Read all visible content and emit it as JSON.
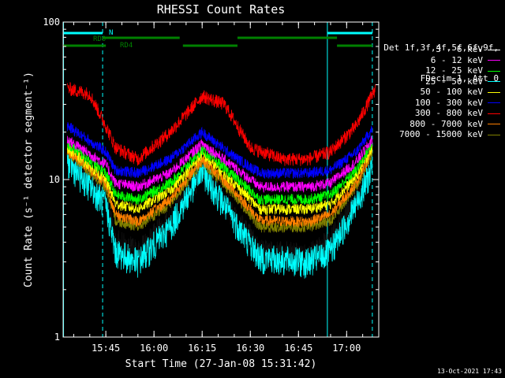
{
  "chart_data": {
    "type": "line",
    "title": "RHESSI Count Rates",
    "xlabel": "Start Time (27-Jan-08 15:31:42)",
    "ylabel": "Count Rate (s⁻¹ detector segment⁻¹)",
    "ylog": true,
    "ylim": [
      1,
      100
    ],
    "xlim_minutes": [
      "15:31:42",
      "17:10:00"
    ],
    "y_ticks": [
      "1",
      "10",
      "100"
    ],
    "x_ticks": [
      "15:45",
      "16:00",
      "16:15",
      "16:30",
      "16:45",
      "17:00"
    ],
    "legend_header": [
      "Det 1f,3f,4f,5f,6f,9f,",
      "FDecim 1, Att 0"
    ],
    "series": [
      {
        "name": "3 - 6 keV",
        "color": "#000000"
      },
      {
        "name": "6 - 12 keV",
        "color": "#ff00ff"
      },
      {
        "name": "12 - 25 keV",
        "color": "#00ff00"
      },
      {
        "name": "25 - 50 keV",
        "color": "#00ffff"
      },
      {
        "name": "50 - 100 keV",
        "color": "#ffff00"
      },
      {
        "name": "100 - 300 keV",
        "color": "#0000ff"
      },
      {
        "name": "300 - 800 keV",
        "color": "#ff0000"
      },
      {
        "name": "800 - 7000 keV",
        "color": "#ff8000"
      },
      {
        "name": "7000 - 15000 keV",
        "color": "#808000"
      }
    ],
    "profiles": [
      {
        "color": "#000000",
        "points": [
          [
            "15:33",
            14
          ],
          [
            "15:45",
            8
          ],
          [
            "15:48",
            4
          ],
          [
            "15:55",
            3.4
          ],
          [
            "16:05",
            5.5
          ],
          [
            "16:15",
            12
          ],
          [
            "16:25",
            6
          ],
          [
            "16:33",
            3.5
          ],
          [
            "16:48",
            3.2
          ],
          [
            "16:55",
            4
          ],
          [
            "17:03",
            8
          ],
          [
            "17:08",
            14
          ]
        ]
      },
      {
        "color": "#00ffff",
        "points": [
          [
            "15:33",
            13
          ],
          [
            "15:45",
            7
          ],
          [
            "15:48",
            3.5
          ],
          [
            "15:55",
            3
          ],
          [
            "16:05",
            5
          ],
          [
            "16:15",
            11.5
          ],
          [
            "16:25",
            5.5
          ],
          [
            "16:33",
            3.2
          ],
          [
            "16:48",
            3.0
          ],
          [
            "16:55",
            3.5
          ],
          [
            "17:03",
            7
          ],
          [
            "17:08",
            12
          ]
        ]
      },
      {
        "color": "#808000",
        "points": [
          [
            "15:33",
            15
          ],
          [
            "15:45",
            9
          ],
          [
            "15:48",
            5.5
          ],
          [
            "15:55",
            5
          ],
          [
            "16:05",
            7
          ],
          [
            "16:15",
            13
          ],
          [
            "16:25",
            8
          ],
          [
            "16:33",
            5
          ],
          [
            "16:48",
            5
          ],
          [
            "16:55",
            5.5
          ],
          [
            "17:03",
            9
          ],
          [
            "17:08",
            15
          ]
        ]
      },
      {
        "color": "#ff8000",
        "points": [
          [
            "15:33",
            15.5
          ],
          [
            "15:45",
            9.5
          ],
          [
            "15:48",
            6
          ],
          [
            "15:55",
            5.4
          ],
          [
            "16:05",
            7.5
          ],
          [
            "16:15",
            13.5
          ],
          [
            "16:25",
            8.5
          ],
          [
            "16:33",
            5.5
          ],
          [
            "16:48",
            5.4
          ],
          [
            "16:55",
            6
          ],
          [
            "17:03",
            9.5
          ],
          [
            "17:08",
            15.5
          ]
        ]
      },
      {
        "color": "#ffff00",
        "points": [
          [
            "15:33",
            16
          ],
          [
            "15:45",
            10
          ],
          [
            "15:48",
            7
          ],
          [
            "15:55",
            6.5
          ],
          [
            "16:05",
            8.5
          ],
          [
            "16:15",
            14.5
          ],
          [
            "16:25",
            9.5
          ],
          [
            "16:33",
            6.5
          ],
          [
            "16:48",
            6.5
          ],
          [
            "16:55",
            7
          ],
          [
            "17:03",
            10.5
          ],
          [
            "17:08",
            16
          ]
        ]
      },
      {
        "color": "#00ff00",
        "points": [
          [
            "15:33",
            17
          ],
          [
            "15:45",
            11
          ],
          [
            "15:48",
            8
          ],
          [
            "15:55",
            7.5
          ],
          [
            "16:05",
            9.5
          ],
          [
            "16:15",
            15.5
          ],
          [
            "16:25",
            10.5
          ],
          [
            "16:33",
            7.5
          ],
          [
            "16:48",
            7.5
          ],
          [
            "16:55",
            8
          ],
          [
            "17:03",
            11.5
          ],
          [
            "17:08",
            17
          ]
        ]
      },
      {
        "color": "#ff00ff",
        "points": [
          [
            "15:33",
            18
          ],
          [
            "15:45",
            12.5
          ],
          [
            "15:48",
            9.5
          ],
          [
            "15:55",
            9
          ],
          [
            "16:05",
            11
          ],
          [
            "16:15",
            17
          ],
          [
            "16:25",
            12
          ],
          [
            "16:33",
            9
          ],
          [
            "16:48",
            9
          ],
          [
            "16:55",
            9.5
          ],
          [
            "17:03",
            13
          ],
          [
            "17:08",
            18
          ]
        ]
      },
      {
        "color": "#0000ff",
        "points": [
          [
            "15:33",
            22
          ],
          [
            "15:45",
            15
          ],
          [
            "15:48",
            11.5
          ],
          [
            "15:55",
            11
          ],
          [
            "16:05",
            13.5
          ],
          [
            "16:15",
            20
          ],
          [
            "16:25",
            14
          ],
          [
            "16:33",
            11
          ],
          [
            "16:48",
            11
          ],
          [
            "16:55",
            11.5
          ],
          [
            "17:03",
            15
          ],
          [
            "17:08",
            21
          ]
        ]
      },
      {
        "color": "#ff0000",
        "points": [
          [
            "15:33",
            38
          ],
          [
            "15:40",
            35
          ],
          [
            "15:45",
            22
          ],
          [
            "15:48",
            16
          ],
          [
            "15:55",
            13.5
          ],
          [
            "16:05",
            20
          ],
          [
            "16:15",
            34
          ],
          [
            "16:22",
            30
          ],
          [
            "16:30",
            16
          ],
          [
            "16:40",
            13.5
          ],
          [
            "16:48",
            13.5
          ],
          [
            "16:55",
            15
          ],
          [
            "17:03",
            22
          ],
          [
            "17:09",
            38
          ]
        ]
      }
    ],
    "annotations": {
      "cyan_bar_label": "N",
      "rd0_label": "RD0",
      "rd4_label": "RD4"
    },
    "footer_stamp": "13-Oct-2021 17:43"
  }
}
